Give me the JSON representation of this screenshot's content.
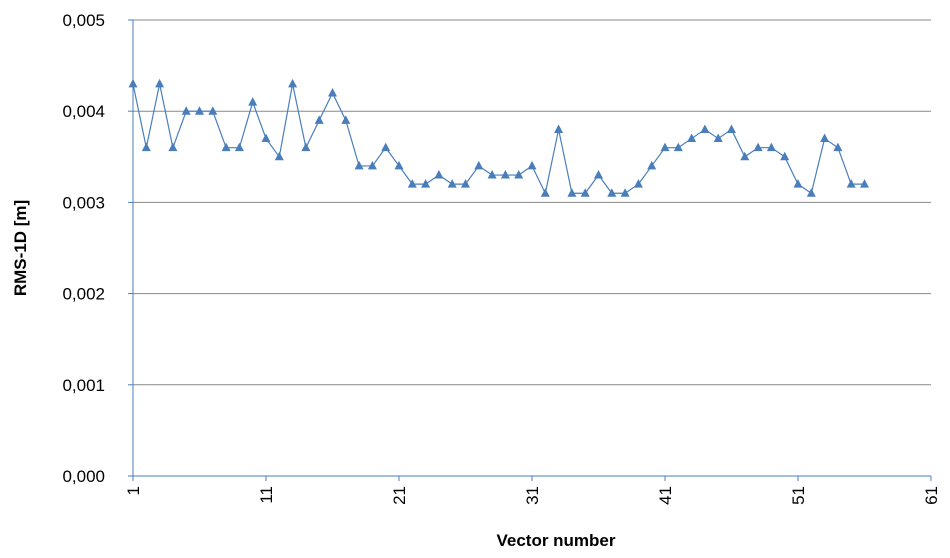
{
  "chart_data": {
    "type": "line",
    "x_label": "Vector number",
    "y_label": "RMS-1D [m]",
    "x": [
      1,
      2,
      3,
      4,
      5,
      6,
      7,
      8,
      9,
      10,
      11,
      12,
      13,
      14,
      15,
      16,
      17,
      18,
      19,
      20,
      21,
      22,
      23,
      24,
      25,
      26,
      27,
      28,
      29,
      30,
      31,
      32,
      33,
      34,
      35,
      36,
      37,
      38,
      39,
      40,
      41,
      42,
      43,
      44,
      45,
      46,
      47,
      48,
      49,
      50,
      51,
      52,
      53,
      54,
      55,
      56
    ],
    "series": [
      {
        "color": "#4a7ebb",
        "values": [
          0.0043,
          0.0036,
          0.0043,
          0.0036,
          0.004,
          0.004,
          0.004,
          0.0036,
          0.0036,
          0.0041,
          0.0037,
          0.0035,
          0.0043,
          0.0036,
          0.0039,
          0.0042,
          0.0039,
          0.0034,
          0.0034,
          0.0036,
          0.0034,
          0.0032,
          0.0032,
          0.0033,
          0.0032,
          0.0032,
          0.0034,
          0.0033,
          0.0033,
          0.0033,
          0.0034,
          0.0031,
          0.0038,
          0.0031,
          0.0031,
          0.0033,
          0.0031,
          0.0031,
          0.0032,
          0.0034,
          0.0036,
          0.0036,
          0.0037,
          0.0038,
          0.0037,
          0.0038,
          0.0035,
          0.0036,
          0.0036,
          0.0035,
          0.0032,
          0.0031,
          0.0037,
          0.0036,
          0.0032,
          0.0032
        ]
      }
    ],
    "xlim": [
      1,
      61
    ],
    "xticks": [
      1,
      11,
      21,
      31,
      41,
      51,
      61
    ],
    "ylim": [
      0,
      0.005
    ],
    "yticks": [
      {
        "value": 0,
        "label": "0,000"
      },
      {
        "value": 0.001,
        "label": "0,001"
      },
      {
        "value": 0.002,
        "label": "0,002"
      },
      {
        "value": 0.003,
        "label": "0,003"
      },
      {
        "value": 0.004,
        "label": "0,004"
      },
      {
        "value": 0.005,
        "label": "0,005"
      }
    ],
    "grid": true
  }
}
